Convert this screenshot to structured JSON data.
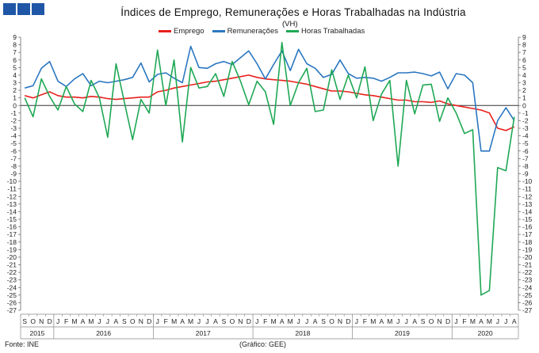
{
  "header": {
    "title": "Índices de Emprego, Remunerações e Horas Trabalhadas na Indústria",
    "unit": "(VH)"
  },
  "footer": {
    "source": "Fonte: INE",
    "credit": "(Gráfico: GEE)"
  },
  "chart_data": {
    "type": "line",
    "ylim": [
      -27,
      9
    ],
    "yticks": [
      9,
      8,
      7,
      6,
      5,
      4,
      3,
      2,
      1,
      0,
      -1,
      -2,
      -3,
      -4,
      -5,
      -6,
      -7,
      -8,
      -9,
      -10,
      -11,
      -12,
      -13,
      -14,
      -15,
      -16,
      -17,
      -18,
      -19,
      -20,
      -21,
      -22,
      -23,
      -24,
      -25,
      -26,
      -27
    ],
    "x": [
      "S",
      "O",
      "N",
      "D",
      "J",
      "F",
      "M",
      "A",
      "M",
      "J",
      "J",
      "A",
      "S",
      "O",
      "N",
      "D",
      "J",
      "F",
      "M",
      "A",
      "M",
      "J",
      "J",
      "A",
      "S",
      "O",
      "N",
      "D",
      "J",
      "F",
      "M",
      "A",
      "M",
      "J",
      "J",
      "A",
      "S",
      "O",
      "N",
      "D",
      "J",
      "F",
      "M",
      "A",
      "M",
      "J",
      "J",
      "A",
      "S",
      "O",
      "N",
      "D",
      "J",
      "F",
      "M",
      "A",
      "M",
      "J",
      "J",
      "A"
    ],
    "years": [
      {
        "label": "2015",
        "start": 0,
        "end": 3
      },
      {
        "label": "2016",
        "start": 4,
        "end": 15
      },
      {
        "label": "2017",
        "start": 16,
        "end": 27
      },
      {
        "label": "2018",
        "start": 28,
        "end": 39
      },
      {
        "label": "2019",
        "start": 40,
        "end": 51
      },
      {
        "label": "2020",
        "start": 52,
        "end": 59
      }
    ],
    "legend_position": "top",
    "grid": false,
    "series": [
      {
        "name": "Emprego",
        "color": "#e8211d",
        "values": [
          1.3,
          1.0,
          1.4,
          1.8,
          1.3,
          1.1,
          1.1,
          1.0,
          1.2,
          1.1,
          0.9,
          0.8,
          0.9,
          1.0,
          1.1,
          1.1,
          1.8,
          2.0,
          2.3,
          2.5,
          2.7,
          2.9,
          3.1,
          3.2,
          3.4,
          3.6,
          3.8,
          4.0,
          3.7,
          3.5,
          3.4,
          3.3,
          3.2,
          3.0,
          2.8,
          2.5,
          2.2,
          1.9,
          1.9,
          1.8,
          1.6,
          1.4,
          1.3,
          1.1,
          0.9,
          0.7,
          0.7,
          0.5,
          0.5,
          0.4,
          0.6,
          0.2,
          0.0,
          -0.2,
          -0.4,
          -0.6,
          -1.0,
          -3.0,
          -3.3,
          -2.8
        ]
      },
      {
        "name": "Remunerações",
        "color": "#2b77c0",
        "values": [
          2.3,
          2.6,
          4.9,
          5.8,
          3.2,
          2.5,
          3.5,
          4.2,
          2.6,
          3.2,
          3.0,
          3.2,
          3.4,
          3.7,
          5.6,
          3.1,
          4.1,
          4.3,
          3.6,
          3.0,
          7.8,
          5.0,
          4.9,
          5.5,
          5.8,
          5.4,
          6.3,
          7.2,
          5.5,
          3.5,
          5.4,
          7.2,
          4.6,
          7.4,
          5.5,
          4.9,
          3.7,
          4.1,
          6.0,
          4.2,
          3.6,
          3.7,
          3.6,
          3.2,
          3.7,
          4.3,
          4.3,
          4.4,
          4.2,
          3.9,
          4.4,
          2.2,
          4.2,
          4.0,
          3.0,
          -6.0,
          -6.0,
          -2.0,
          -0.3,
          -2.0
        ]
      },
      {
        "name": "Horas Trabalhadas",
        "color": "#1fa855",
        "values": [
          1.0,
          -1.5,
          3.5,
          1.2,
          -0.6,
          2.5,
          0.2,
          -0.8,
          3.3,
          1.0,
          -4.2,
          5.5,
          0.5,
          -4.5,
          0.8,
          -1.0,
          7.3,
          0.0,
          6.0,
          -4.8,
          5.0,
          2.3,
          2.5,
          4.2,
          1.2,
          5.8,
          3.2,
          0.1,
          3.2,
          1.8,
          -2.5,
          8.3,
          0.0,
          3.0,
          4.9,
          -0.8,
          -0.6,
          4.7,
          0.8,
          4.0,
          1.0,
          5.1,
          -2.0,
          1.5,
          3.3,
          -8.0,
          3.3,
          -1.1,
          2.7,
          2.8,
          -2.1,
          1.0,
          -1.0,
          -3.7,
          -3.2,
          -25.0,
          -24.4,
          -8.2,
          -8.6,
          -1.5
        ]
      }
    ]
  }
}
